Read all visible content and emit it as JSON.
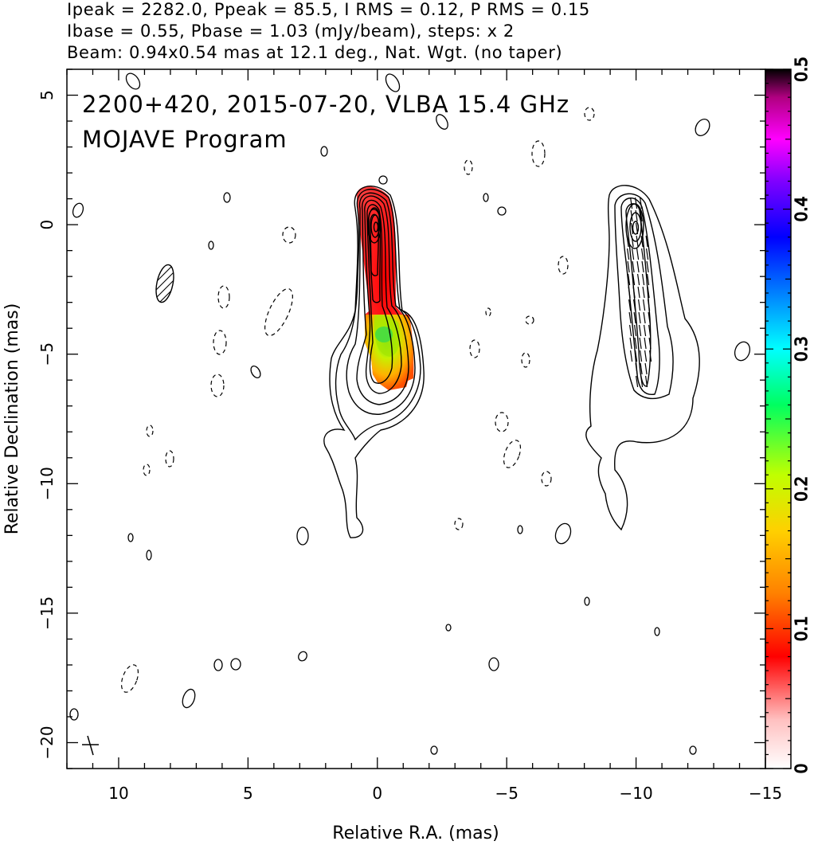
{
  "header": {
    "line1": "Ipeak = 2282.0, Ppeak = 85.5, I RMS = 0.12, P RMS = 0.15",
    "line2": "Ibase = 0.55, Pbase = 1.03 (mJy/beam), steps: x 2",
    "line3": "Beam: 0.94x0.54 mas at 12.1 deg., Nat. Wgt. (no taper)"
  },
  "overlay": {
    "source_line": "2200+420, 2015-07-20, VLBA 15.4 GHz",
    "program_line": "MOJAVE Program"
  },
  "chart_data": {
    "type": "heatmap",
    "xlabel": "Relative R.A. (mas)",
    "ylabel": "Relative Declination (mas)",
    "xlim": [
      12,
      -15
    ],
    "ylim": [
      -21,
      6
    ],
    "x_ticks": [
      10,
      5,
      0,
      -5,
      -10,
      -15
    ],
    "x_tick_labels": [
      "10",
      "5",
      "0",
      "−5",
      "−10",
      "−15"
    ],
    "y_ticks": [
      5,
      0,
      -5,
      -10,
      -15,
      -20
    ],
    "y_tick_labels": [
      "5",
      "0",
      "−5",
      "−10",
      "−15",
      "−20"
    ],
    "colorbar": {
      "range": [
        0,
        0.5
      ],
      "ticks": [
        0,
        0.1,
        0.2,
        0.3,
        0.4,
        0.5
      ],
      "tick_labels": [
        "0",
        "0.1",
        "0.2",
        "0.3",
        "0.4",
        "0.5"
      ],
      "colors": [
        "#ffffff",
        "#ffc0c0",
        "#ff0000",
        "#ff8000",
        "#ffd000",
        "#c0ff00",
        "#00ff60",
        "#00ffff",
        "#0080ff",
        "#0000ff",
        "#8000ff",
        "#ff00ff",
        "#b00080",
        "#000000"
      ]
    },
    "core_position": [
      0,
      0
    ],
    "jet_ridge": [
      [
        0,
        0
      ],
      [
        -0.3,
        -2.5
      ],
      [
        -0.3,
        -4.5
      ],
      [
        -0.4,
        -6.3
      ]
    ],
    "second_panel_core": [
      -10,
      0
    ],
    "beam": {
      "major_mas": 0.94,
      "minor_mas": 0.54,
      "pa_deg": 12.1
    },
    "ipeak_mjy_per_beam": 2282.0,
    "ppeak_mjy_per_beam": 85.5,
    "i_rms": 0.12,
    "p_rms": 0.15,
    "ibase": 0.55,
    "pbase": 1.03,
    "contour_step_factor": 2
  }
}
